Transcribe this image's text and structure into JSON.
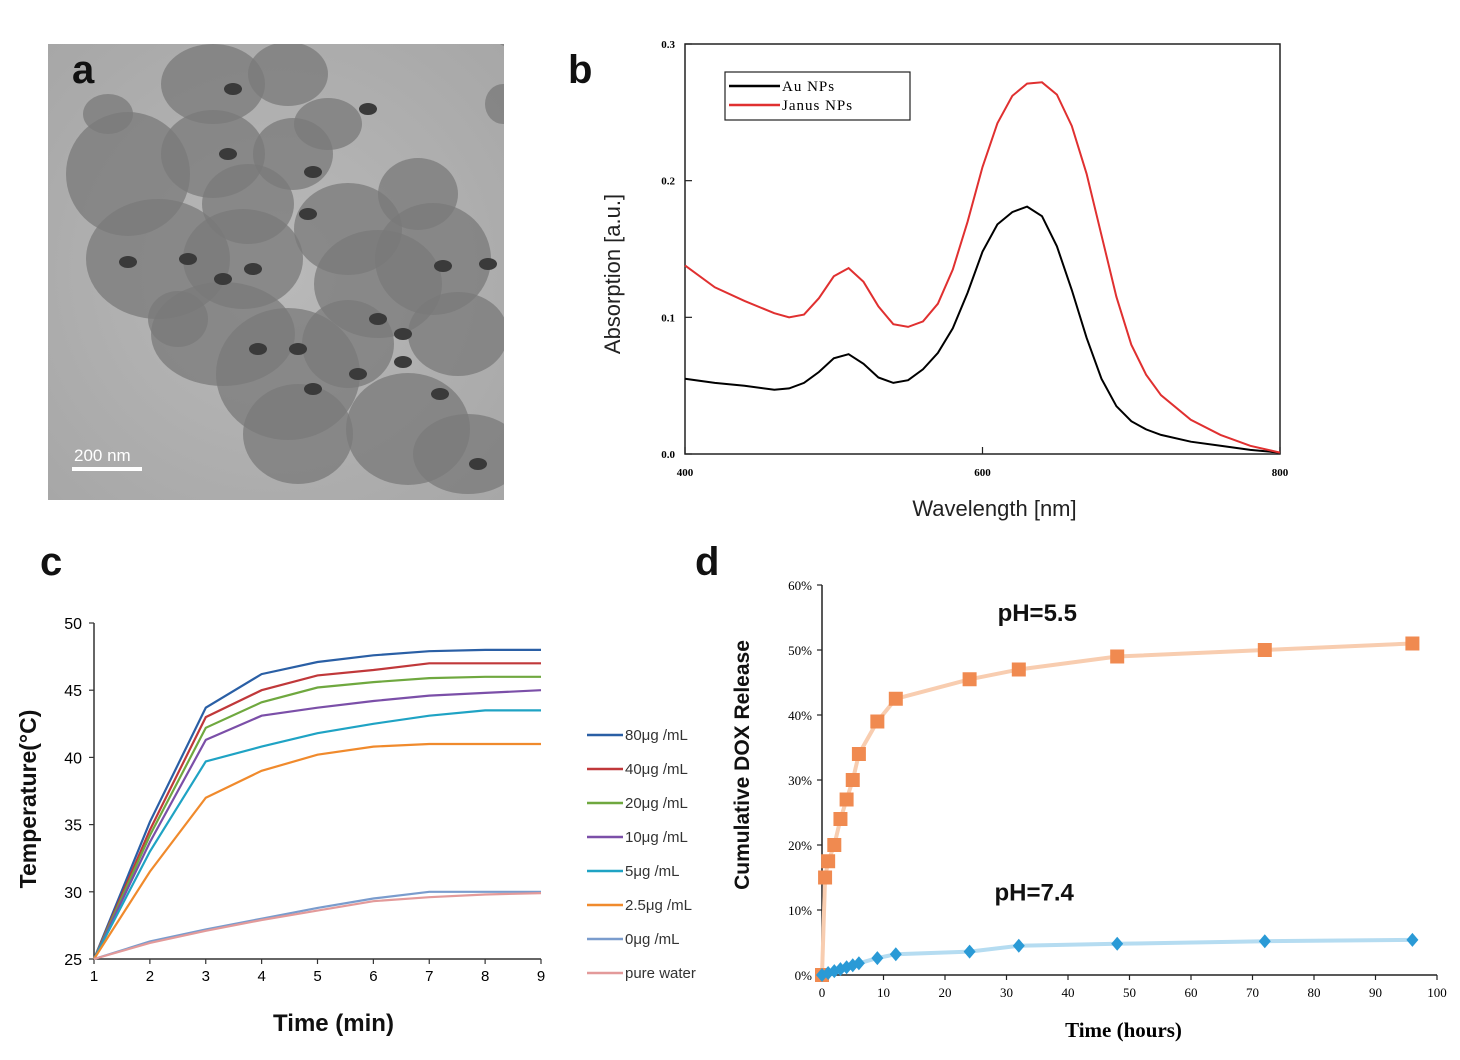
{
  "panels": {
    "a": {
      "letter": "a",
      "scale_bar_label": "200 nm"
    },
    "b": {
      "letter": "b"
    },
    "c": {
      "letter": "c"
    },
    "d": {
      "letter": "d"
    }
  },
  "chart_data": [
    {
      "panel": "b",
      "type": "line",
      "title": "",
      "xlabel": "Wavelength [nm]",
      "ylabel": "Absorption [a.u.]",
      "xlim": [
        400,
        800
      ],
      "ylim": [
        0.0,
        0.3
      ],
      "xticks": [
        "400",
        "600",
        "800"
      ],
      "xtick_values": [
        400,
        600,
        800
      ],
      "yticks": [
        "0.0",
        "0.1",
        "0.2",
        "0.3"
      ],
      "ytick_values": [
        0.0,
        0.1,
        0.2,
        0.3
      ],
      "legend_position": "top-left",
      "grid": false,
      "series": [
        {
          "name": "Au NPs",
          "color": "#000000",
          "x": [
            400,
            420,
            440,
            460,
            470,
            480,
            490,
            500,
            510,
            520,
            530,
            540,
            550,
            560,
            570,
            580,
            590,
            600,
            610,
            620,
            630,
            640,
            650,
            660,
            670,
            680,
            690,
            700,
            710,
            720,
            740,
            760,
            780,
            800
          ],
          "y": [
            0.055,
            0.052,
            0.05,
            0.047,
            0.048,
            0.052,
            0.06,
            0.07,
            0.073,
            0.066,
            0.056,
            0.052,
            0.054,
            0.062,
            0.074,
            0.092,
            0.118,
            0.148,
            0.168,
            0.177,
            0.181,
            0.174,
            0.152,
            0.12,
            0.085,
            0.055,
            0.035,
            0.024,
            0.018,
            0.014,
            0.009,
            0.006,
            0.003,
            0.001
          ]
        },
        {
          "name": "Janus NPs",
          "color": "#e03030",
          "x": [
            400,
            420,
            440,
            460,
            470,
            480,
            490,
            500,
            510,
            520,
            530,
            540,
            550,
            560,
            570,
            580,
            590,
            600,
            610,
            620,
            630,
            640,
            650,
            660,
            670,
            680,
            690,
            700,
            710,
            720,
            740,
            760,
            780,
            800
          ],
          "y": [
            0.138,
            0.122,
            0.112,
            0.103,
            0.1,
            0.102,
            0.114,
            0.13,
            0.136,
            0.126,
            0.108,
            0.095,
            0.093,
            0.097,
            0.11,
            0.135,
            0.17,
            0.21,
            0.242,
            0.262,
            0.271,
            0.272,
            0.263,
            0.24,
            0.205,
            0.16,
            0.115,
            0.08,
            0.058,
            0.043,
            0.025,
            0.014,
            0.006,
            0.001
          ]
        }
      ]
    },
    {
      "panel": "c",
      "type": "line",
      "title": "",
      "xlabel": "Time (min)",
      "ylabel": "Temperature(°C)",
      "xlim": [
        1,
        9
      ],
      "ylim": [
        25,
        50
      ],
      "xticks": [
        "1",
        "2",
        "3",
        "4",
        "5",
        "6",
        "7",
        "8",
        "9"
      ],
      "xtick_values": [
        1,
        2,
        3,
        4,
        5,
        6,
        7,
        8,
        9
      ],
      "yticks": [
        "25",
        "30",
        "35",
        "40",
        "45",
        "50"
      ],
      "ytick_values": [
        25,
        30,
        35,
        40,
        45,
        50
      ],
      "legend_position": "right",
      "grid": false,
      "x": [
        1,
        2,
        3,
        4,
        5,
        6,
        7,
        8,
        9
      ],
      "series": [
        {
          "name": "80μg /mL",
          "color": "#2a5fa5",
          "values": [
            25,
            35.2,
            43.7,
            46.2,
            47.1,
            47.6,
            47.9,
            48.0,
            48.0
          ]
        },
        {
          "name": "40μg /mL",
          "color": "#c0383a",
          "values": [
            25,
            34.6,
            43.0,
            45.0,
            46.1,
            46.5,
            47.0,
            47.0,
            47.0
          ]
        },
        {
          "name": "20μg /mL",
          "color": "#6fa83f",
          "values": [
            25,
            34.2,
            42.2,
            44.1,
            45.2,
            45.6,
            45.9,
            46.0,
            46.0
          ]
        },
        {
          "name": "10μg /mL",
          "color": "#7b4fa8",
          "values": [
            25,
            33.7,
            41.3,
            43.1,
            43.7,
            44.2,
            44.6,
            44.8,
            45.0
          ]
        },
        {
          "name": "5μg /mL",
          "color": "#1fa3c4",
          "values": [
            25,
            33.0,
            39.7,
            40.8,
            41.8,
            42.5,
            43.1,
            43.5,
            43.5
          ]
        },
        {
          "name": "2.5μg /mL",
          "color": "#f08a2c",
          "values": [
            25,
            31.5,
            37.0,
            39.0,
            40.2,
            40.8,
            41.0,
            41.0,
            41.0
          ]
        },
        {
          "name": "0μg /mL",
          "color": "#7a9ccd",
          "values": [
            25,
            26.3,
            27.2,
            28.0,
            28.8,
            29.5,
            30.0,
            30.0,
            30.0
          ]
        },
        {
          "name": "pure water",
          "color": "#e39a9a",
          "values": [
            25,
            26.2,
            27.1,
            27.9,
            28.6,
            29.3,
            29.6,
            29.8,
            29.9
          ]
        }
      ]
    },
    {
      "panel": "d",
      "type": "scatter",
      "title": "",
      "xlabel": "Time (hours)",
      "ylabel": "Cumulative DOX  Release",
      "xlim": [
        0,
        100
      ],
      "ylim": [
        0,
        60
      ],
      "xticks": [
        "0",
        "10",
        "20",
        "30",
        "40",
        "50",
        "60",
        "70",
        "80",
        "90",
        "100"
      ],
      "xtick_values": [
        0,
        10,
        20,
        30,
        40,
        50,
        60,
        70,
        80,
        90,
        100
      ],
      "yticks": [
        "0%",
        "10%",
        "20%",
        "30%",
        "40%",
        "50%",
        "60%"
      ],
      "ytick_values": [
        0,
        10,
        20,
        30,
        40,
        50,
        60
      ],
      "grid": false,
      "series": [
        {
          "label": "pH=5.5",
          "color": "#f08a50",
          "line_color": "#f8cdb0",
          "marker": "square",
          "x": [
            0,
            0.5,
            1,
            2,
            3,
            4,
            5,
            6,
            9,
            12,
            24,
            32,
            48,
            72,
            96
          ],
          "y": [
            0,
            15,
            17.5,
            20,
            24,
            27,
            30,
            34,
            39,
            42.5,
            45.5,
            47,
            49,
            50,
            51
          ]
        },
        {
          "label": "pH=7.4",
          "color": "#2a9ad6",
          "line_color": "#b5dcf1",
          "marker": "diamond",
          "x": [
            0,
            1,
            2,
            3,
            4,
            5,
            6,
            9,
            12,
            24,
            32,
            48,
            72,
            96
          ],
          "y": [
            0,
            0.3,
            0.6,
            0.9,
            1.2,
            1.5,
            1.8,
            2.6,
            3.2,
            3.6,
            4.5,
            4.8,
            5.2,
            5.4
          ]
        }
      ]
    }
  ]
}
